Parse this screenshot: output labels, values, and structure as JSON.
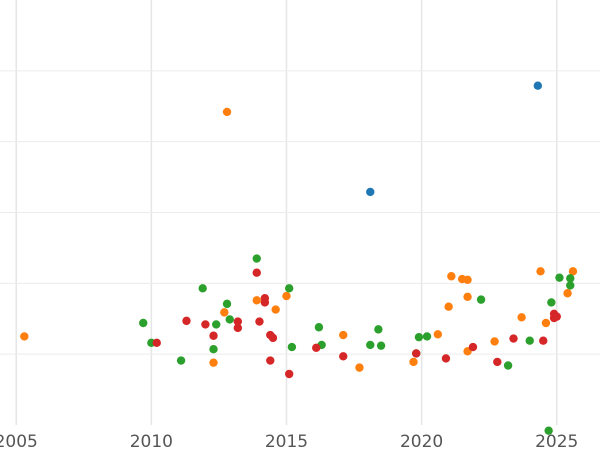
{
  "chart_data": {
    "type": "scatter",
    "title": "",
    "xlabel": "",
    "ylabel": "",
    "xlim": [
      2004.4,
      2026.6
    ],
    "ylim": [
      0,
      6
    ],
    "x_ticks": [
      2005,
      2010,
      2015,
      2020,
      2025
    ],
    "x_tick_labels": [
      "2005",
      "2010",
      "2015",
      "2020",
      "2025"
    ],
    "y_gridlines": [
      1,
      2,
      3,
      4,
      5
    ],
    "y_tick_labels_visible": false,
    "grid": true,
    "legend": "none",
    "series": [
      {
        "color": "#1f77b4",
        "points": [
          {
            "x": 2024.3,
            "y": 4.79
          },
          {
            "x": 2018.1,
            "y": 3.29
          }
        ]
      },
      {
        "color": "#ff7f0e",
        "points": [
          {
            "x": 2005.3,
            "y": 1.25
          },
          {
            "x": 2012.8,
            "y": 4.42
          },
          {
            "x": 2012.3,
            "y": 0.88
          },
          {
            "x": 2012.7,
            "y": 1.59
          },
          {
            "x": 2013.9,
            "y": 1.76
          },
          {
            "x": 2014.6,
            "y": 1.63
          },
          {
            "x": 2015.0,
            "y": 1.82
          },
          {
            "x": 2017.1,
            "y": 1.27
          },
          {
            "x": 2017.7,
            "y": 0.81
          },
          {
            "x": 2019.7,
            "y": 0.89
          },
          {
            "x": 2020.6,
            "y": 1.28
          },
          {
            "x": 2021.0,
            "y": 1.67
          },
          {
            "x": 2021.1,
            "y": 2.1
          },
          {
            "x": 2021.5,
            "y": 2.06
          },
          {
            "x": 2021.7,
            "y": 2.05
          },
          {
            "x": 2021.7,
            "y": 1.81
          },
          {
            "x": 2021.7,
            "y": 1.04
          },
          {
            "x": 2022.7,
            "y": 1.18
          },
          {
            "x": 2023.7,
            "y": 1.52
          },
          {
            "x": 2024.4,
            "y": 2.17
          },
          {
            "x": 2024.6,
            "y": 1.44
          },
          {
            "x": 2025.4,
            "y": 1.86
          },
          {
            "x": 2025.6,
            "y": 2.17
          }
        ]
      },
      {
        "color": "#2ca02c",
        "points": [
          {
            "x": 2009.7,
            "y": 1.44
          },
          {
            "x": 2010.0,
            "y": 1.16
          },
          {
            "x": 2011.1,
            "y": 0.91
          },
          {
            "x": 2011.9,
            "y": 1.93
          },
          {
            "x": 2012.3,
            "y": 1.07
          },
          {
            "x": 2012.4,
            "y": 1.42
          },
          {
            "x": 2012.8,
            "y": 1.71
          },
          {
            "x": 2012.9,
            "y": 1.49
          },
          {
            "x": 2013.9,
            "y": 2.35
          },
          {
            "x": 2015.1,
            "y": 1.93
          },
          {
            "x": 2015.2,
            "y": 1.1
          },
          {
            "x": 2016.2,
            "y": 1.38
          },
          {
            "x": 2016.3,
            "y": 1.13
          },
          {
            "x": 2018.1,
            "y": 1.13
          },
          {
            "x": 2018.4,
            "y": 1.35
          },
          {
            "x": 2018.5,
            "y": 1.12
          },
          {
            "x": 2019.8,
            "y": 1.01
          },
          {
            "x": 2019.9,
            "y": 1.24
          },
          {
            "x": 2020.2,
            "y": 1.25
          },
          {
            "x": 2022.2,
            "y": 1.77
          },
          {
            "x": 2023.2,
            "y": 0.84
          },
          {
            "x": 2024.0,
            "y": 1.19
          },
          {
            "x": 2024.8,
            "y": 1.73
          },
          {
            "x": 2024.7,
            "y": -0.08
          },
          {
            "x": 2025.1,
            "y": 2.08
          },
          {
            "x": 2025.5,
            "y": 2.07
          },
          {
            "x": 2025.5,
            "y": 1.97
          }
        ]
      },
      {
        "color": "#d62728",
        "points": [
          {
            "x": 2010.2,
            "y": 1.16
          },
          {
            "x": 2011.3,
            "y": 1.47
          },
          {
            "x": 2012.0,
            "y": 1.42
          },
          {
            "x": 2012.3,
            "y": 1.26
          },
          {
            "x": 2013.2,
            "y": 1.37
          },
          {
            "x": 2013.2,
            "y": 1.46
          },
          {
            "x": 2013.9,
            "y": 2.15
          },
          {
            "x": 2014.0,
            "y": 1.46
          },
          {
            "x": 2014.2,
            "y": 1.79
          },
          {
            "x": 2014.2,
            "y": 1.73
          },
          {
            "x": 2014.4,
            "y": 0.91
          },
          {
            "x": 2014.4,
            "y": 1.27
          },
          {
            "x": 2014.5,
            "y": 1.23
          },
          {
            "x": 2015.1,
            "y": 0.72
          },
          {
            "x": 2016.1,
            "y": 1.09
          },
          {
            "x": 2017.1,
            "y": 0.97
          },
          {
            "x": 2019.8,
            "y": 1.01
          },
          {
            "x": 2020.9,
            "y": 0.94
          },
          {
            "x": 2021.9,
            "y": 1.1
          },
          {
            "x": 2022.8,
            "y": 0.89
          },
          {
            "x": 2023.4,
            "y": 1.22
          },
          {
            "x": 2024.5,
            "y": 1.19
          },
          {
            "x": 2024.9,
            "y": 1.51
          },
          {
            "x": 2024.9,
            "y": 1.57
          },
          {
            "x": 2025.0,
            "y": 1.53
          }
        ]
      }
    ]
  }
}
